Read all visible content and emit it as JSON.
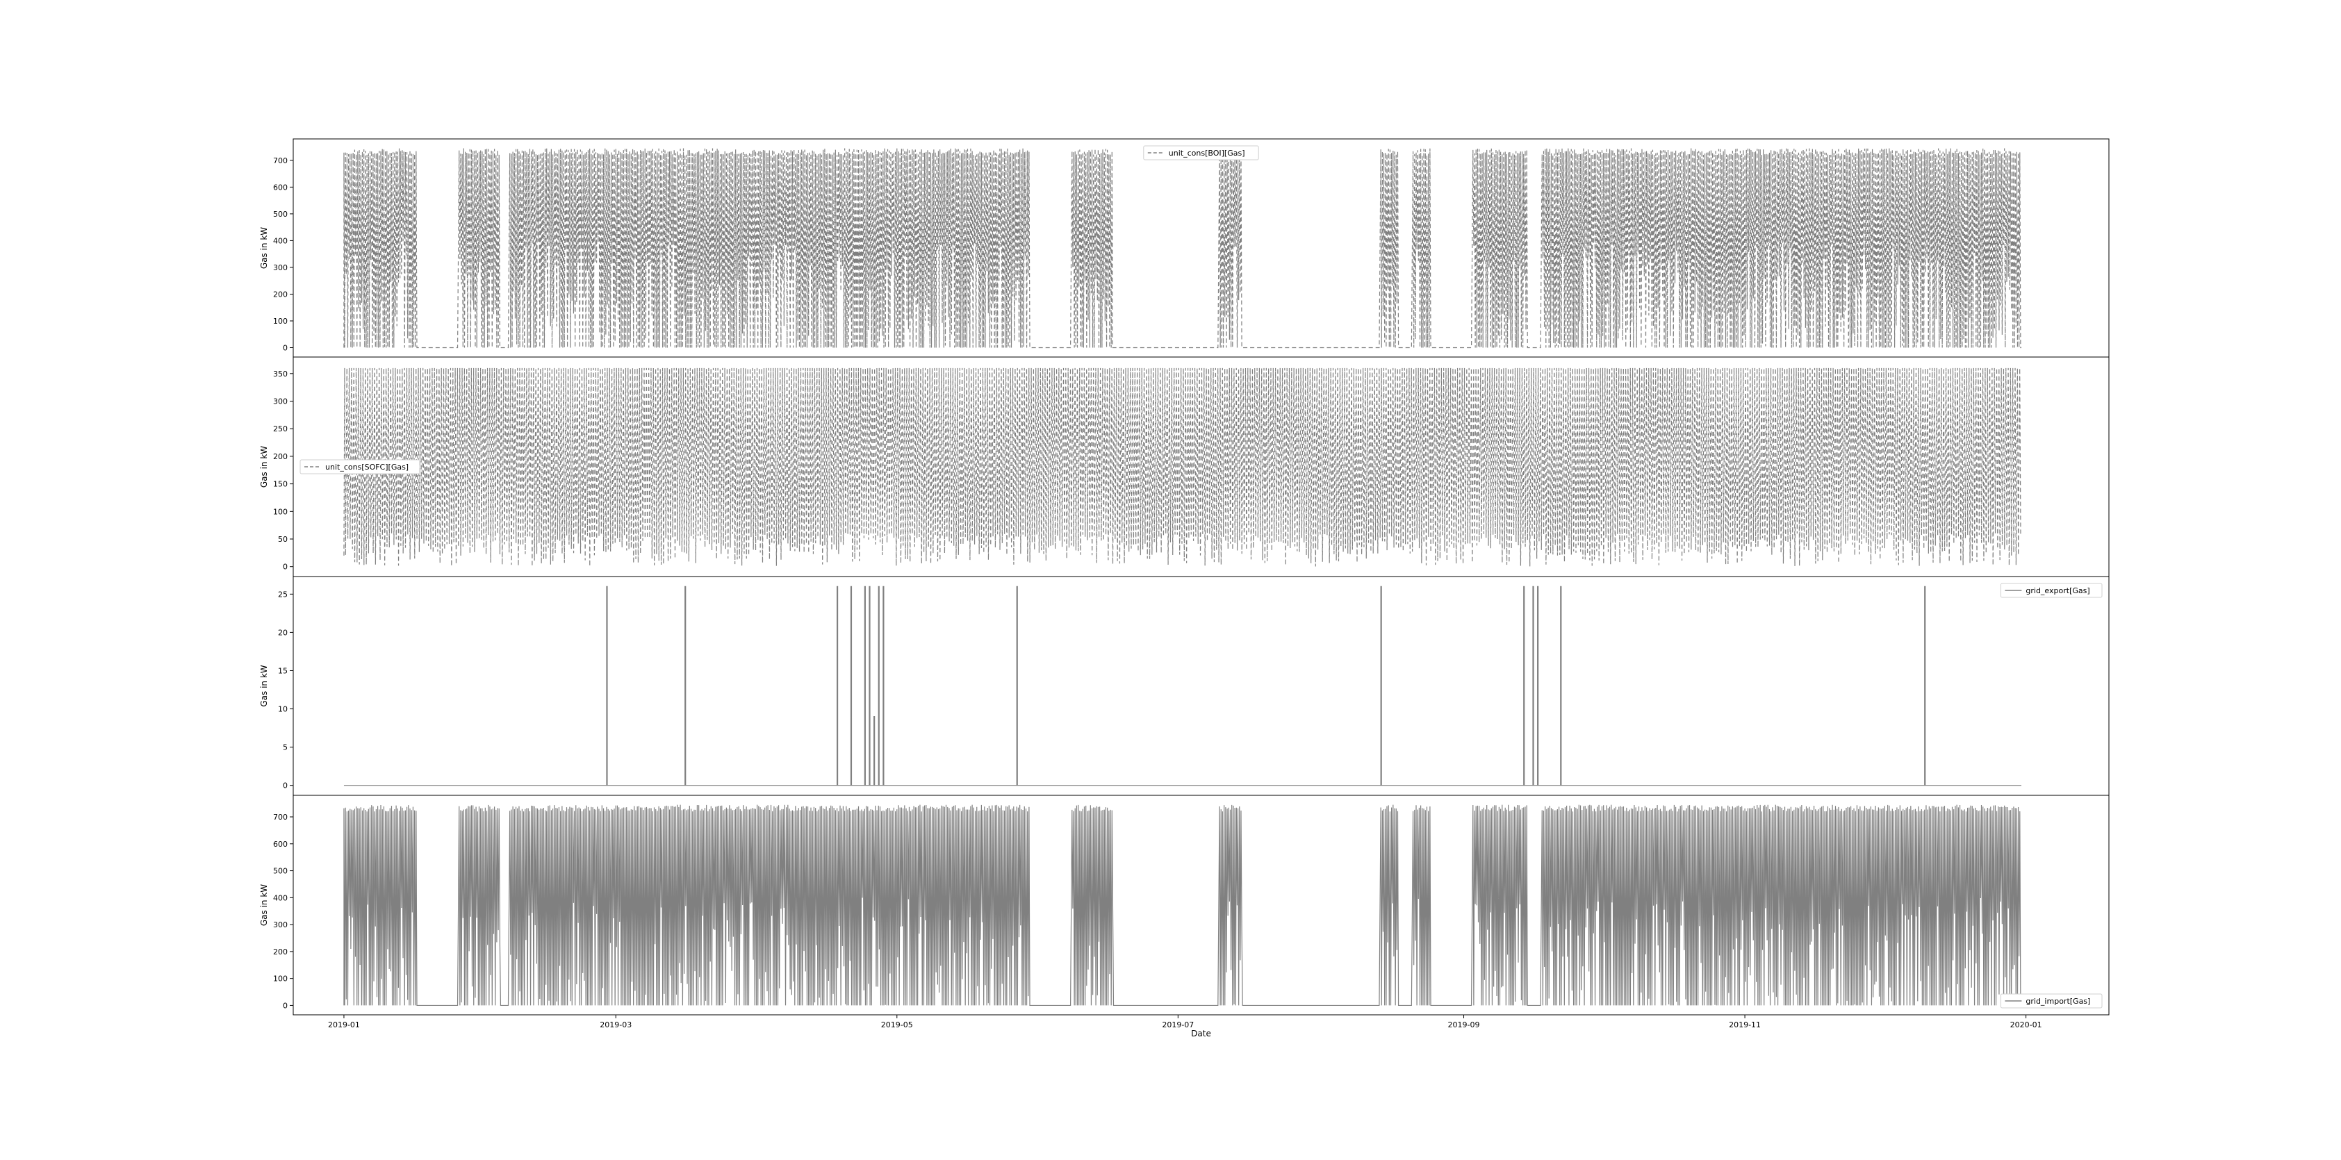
{
  "chart_data": {
    "type": "line",
    "shared_x": {
      "label": "Date",
      "range": [
        "2018-12-21",
        "2020-01-19"
      ],
      "ticks": [
        "2019-01",
        "2019-03",
        "2019-05",
        "2019-07",
        "2019-09",
        "2019-11",
        "2020-01"
      ]
    },
    "panels": [
      {
        "ylabel": "Gas in kW",
        "ylim": [
          -35,
          780
        ],
        "yticks": [
          0,
          100,
          200,
          300,
          400,
          500,
          600,
          700
        ],
        "legend": {
          "placement": "top-center"
        },
        "series": [
          {
            "name": "unit_cons[BOI][Gas]",
            "style": "dashed",
            "color": "#808080",
            "max": 745,
            "active": [
              [
                "2019-01-01",
                "2019-01-16"
              ],
              [
                "2019-01-26",
                "2019-02-03"
              ],
              [
                "2019-02-06",
                "2019-05-29"
              ],
              [
                "2019-06-08",
                "2019-06-16"
              ],
              [
                "2019-07-10",
                "2019-07-14"
              ],
              [
                "2019-08-14",
                "2019-08-17"
              ],
              [
                "2019-08-21",
                "2019-08-24"
              ],
              [
                "2019-09-03",
                "2019-09-14"
              ],
              [
                "2019-09-18",
                "2019-12-31"
              ]
            ],
            "idle_value": 0
          }
        ]
      },
      {
        "ylabel": "Gas in kW",
        "ylim": [
          -18,
          380
        ],
        "yticks": [
          0,
          50,
          100,
          150,
          200,
          250,
          300,
          350
        ],
        "legend": {
          "placement": "center-left"
        },
        "series": [
          {
            "name": "unit_cons[SOFC][Gas]",
            "style": "dashed",
            "color": "#808080",
            "max": 360,
            "base": 20,
            "active": [
              [
                "2019-01-01",
                "2019-12-31"
              ]
            ]
          }
        ]
      },
      {
        "ylabel": "Gas in kW",
        "ylim": [
          -1.3,
          27.3
        ],
        "yticks": [
          0,
          5,
          10,
          15,
          20,
          25
        ],
        "legend": {
          "placement": "top-right"
        },
        "series": [
          {
            "name": "grid_export[Gas]",
            "style": "solid",
            "color": "#808080",
            "baseline": 0,
            "spikes": [
              {
                "date": "2019-02-27",
                "value": 26
              },
              {
                "date": "2019-03-16",
                "value": 26
              },
              {
                "date": "2019-04-18",
                "value": 26
              },
              {
                "date": "2019-04-21",
                "value": 26
              },
              {
                "date": "2019-04-24",
                "value": 26
              },
              {
                "date": "2019-04-25",
                "value": 26
              },
              {
                "date": "2019-04-26",
                "value": 9
              },
              {
                "date": "2019-04-27",
                "value": 26
              },
              {
                "date": "2019-04-28",
                "value": 26
              },
              {
                "date": "2019-05-27",
                "value": 26
              },
              {
                "date": "2019-08-14",
                "value": 26
              },
              {
                "date": "2019-09-14",
                "value": 26
              },
              {
                "date": "2019-09-16",
                "value": 26
              },
              {
                "date": "2019-09-17",
                "value": 26
              },
              {
                "date": "2019-09-22",
                "value": 26
              },
              {
                "date": "2019-12-10",
                "value": 26
              }
            ]
          }
        ]
      },
      {
        "ylabel": "Gas in kW",
        "ylim": [
          -35,
          780
        ],
        "yticks": [
          0,
          100,
          200,
          300,
          400,
          500,
          600,
          700
        ],
        "legend": {
          "placement": "bottom-right"
        },
        "series": [
          {
            "name": "grid_import[Gas]",
            "style": "solid",
            "color": "#808080",
            "max": 745,
            "active": [
              [
                "2019-01-01",
                "2019-01-16"
              ],
              [
                "2019-01-26",
                "2019-02-03"
              ],
              [
                "2019-02-06",
                "2019-05-29"
              ],
              [
                "2019-06-08",
                "2019-06-16"
              ],
              [
                "2019-07-10",
                "2019-07-14"
              ],
              [
                "2019-08-14",
                "2019-08-17"
              ],
              [
                "2019-08-21",
                "2019-08-24"
              ],
              [
                "2019-09-03",
                "2019-09-14"
              ],
              [
                "2019-09-18",
                "2019-12-31"
              ]
            ],
            "idle_value": 0
          }
        ]
      }
    ]
  }
}
